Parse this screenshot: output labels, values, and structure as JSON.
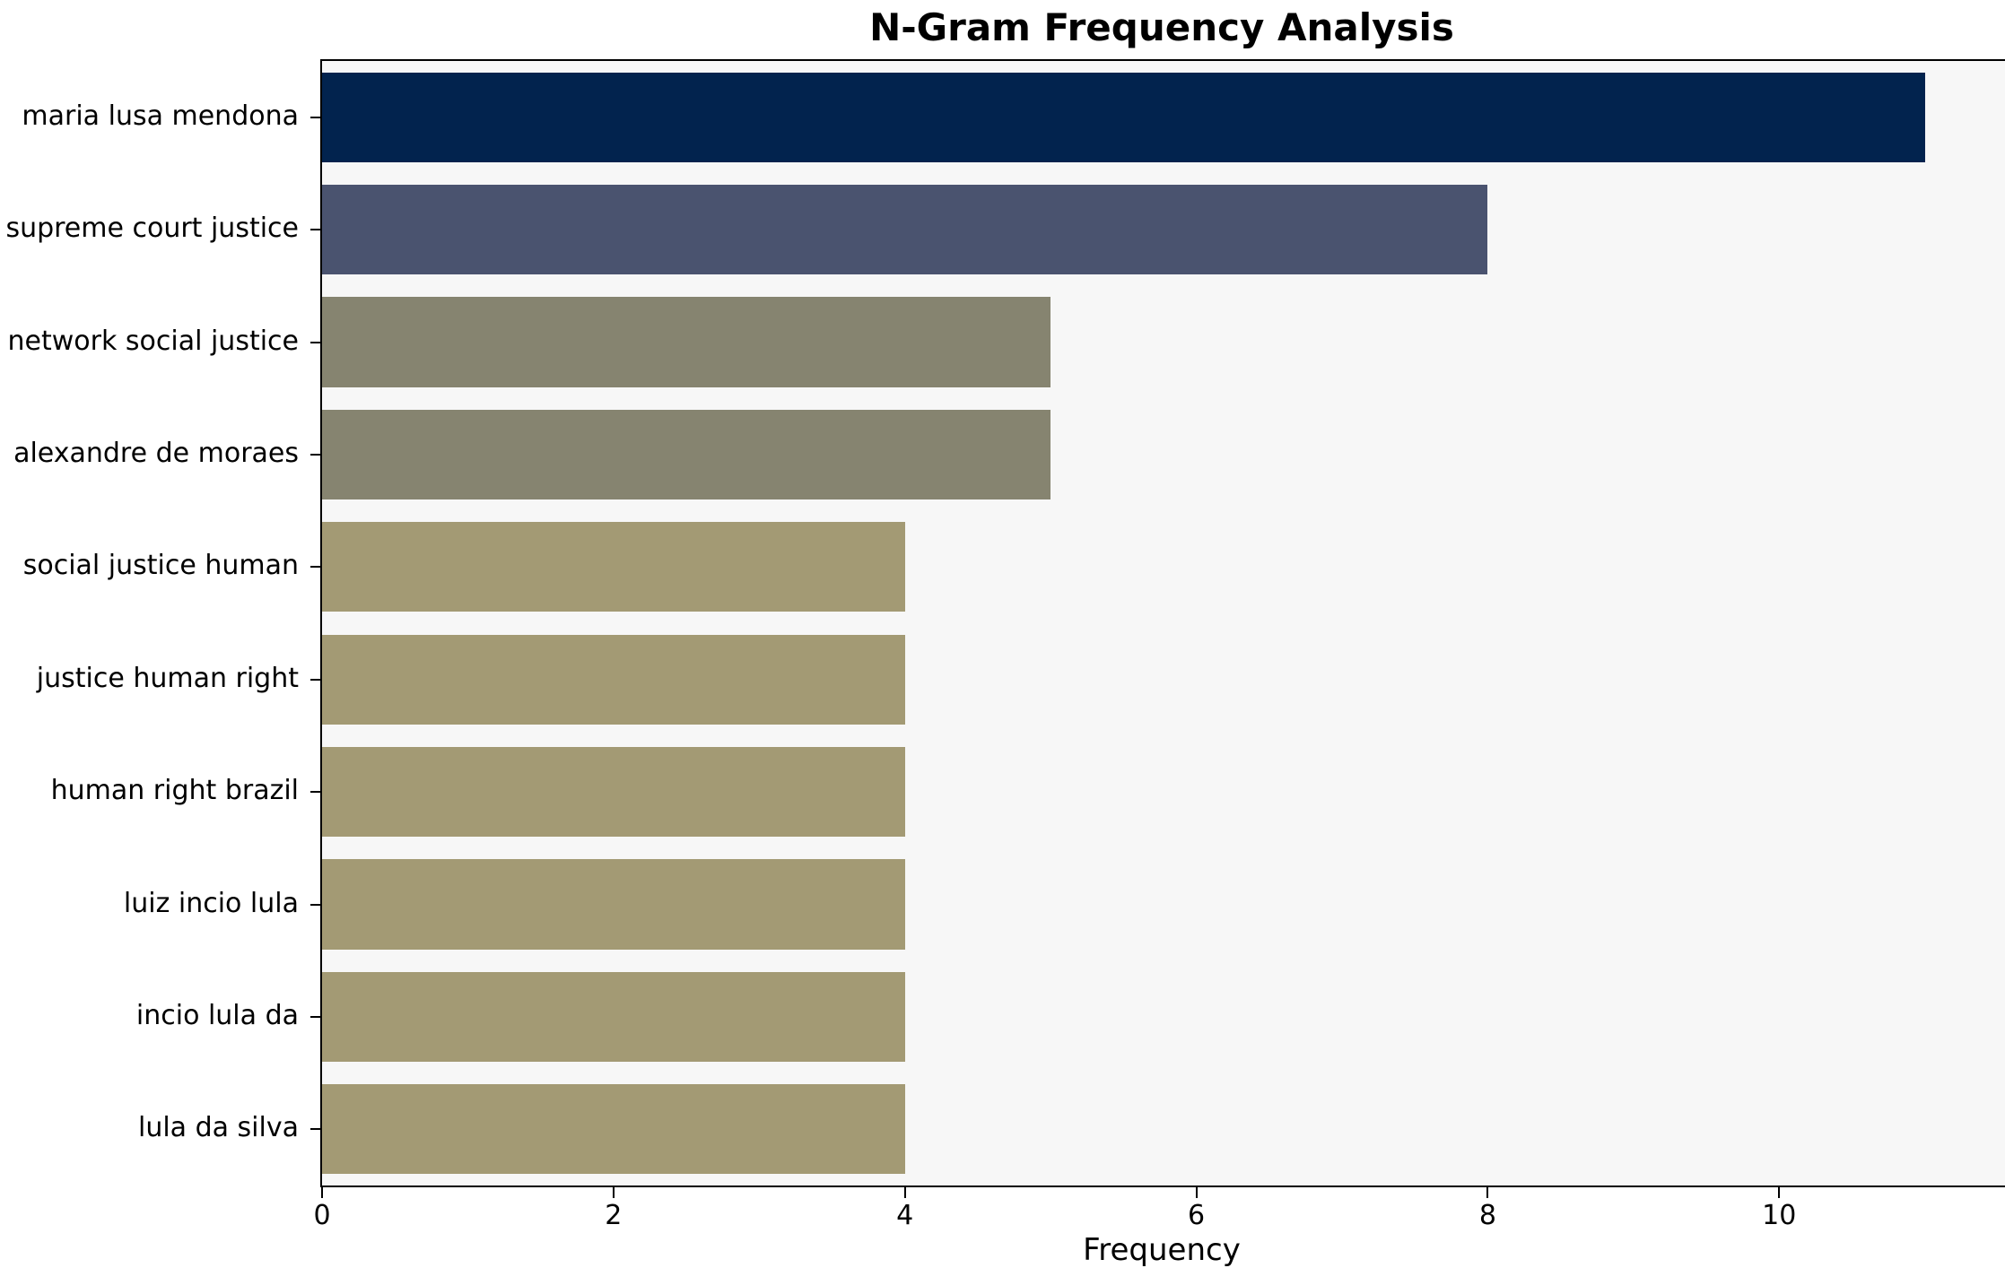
{
  "title": "N-Gram Frequency Analysis",
  "chart_data": {
    "type": "bar",
    "orientation": "horizontal",
    "title": "N-Gram Frequency Analysis",
    "xlabel": "Frequency",
    "ylabel": "",
    "categories": [
      "maria lusa mendona",
      "supreme court justice",
      "network social justice",
      "alexandre de moraes",
      "social justice human",
      "justice human right",
      "human right brazil",
      "luiz incio lula",
      "incio lula da",
      "lula da silva"
    ],
    "values": [
      11,
      8,
      5,
      5,
      4,
      4,
      4,
      4,
      4,
      4
    ],
    "bar_colors": [
      "#02234e",
      "#4a536f",
      "#868470",
      "#868470",
      "#a39a74",
      "#a39a74",
      "#a39a74",
      "#a39a74",
      "#a39a74",
      "#a39a74"
    ],
    "xlim": [
      0,
      11.55
    ],
    "x_ticks": [
      0,
      2,
      4,
      6,
      8,
      10
    ],
    "bar_width_fraction": 0.8,
    "grid": false,
    "legend": null,
    "plot_bg": "#f7f7f7",
    "figure_bg": "#ffffff",
    "spine_color": "#000000"
  }
}
